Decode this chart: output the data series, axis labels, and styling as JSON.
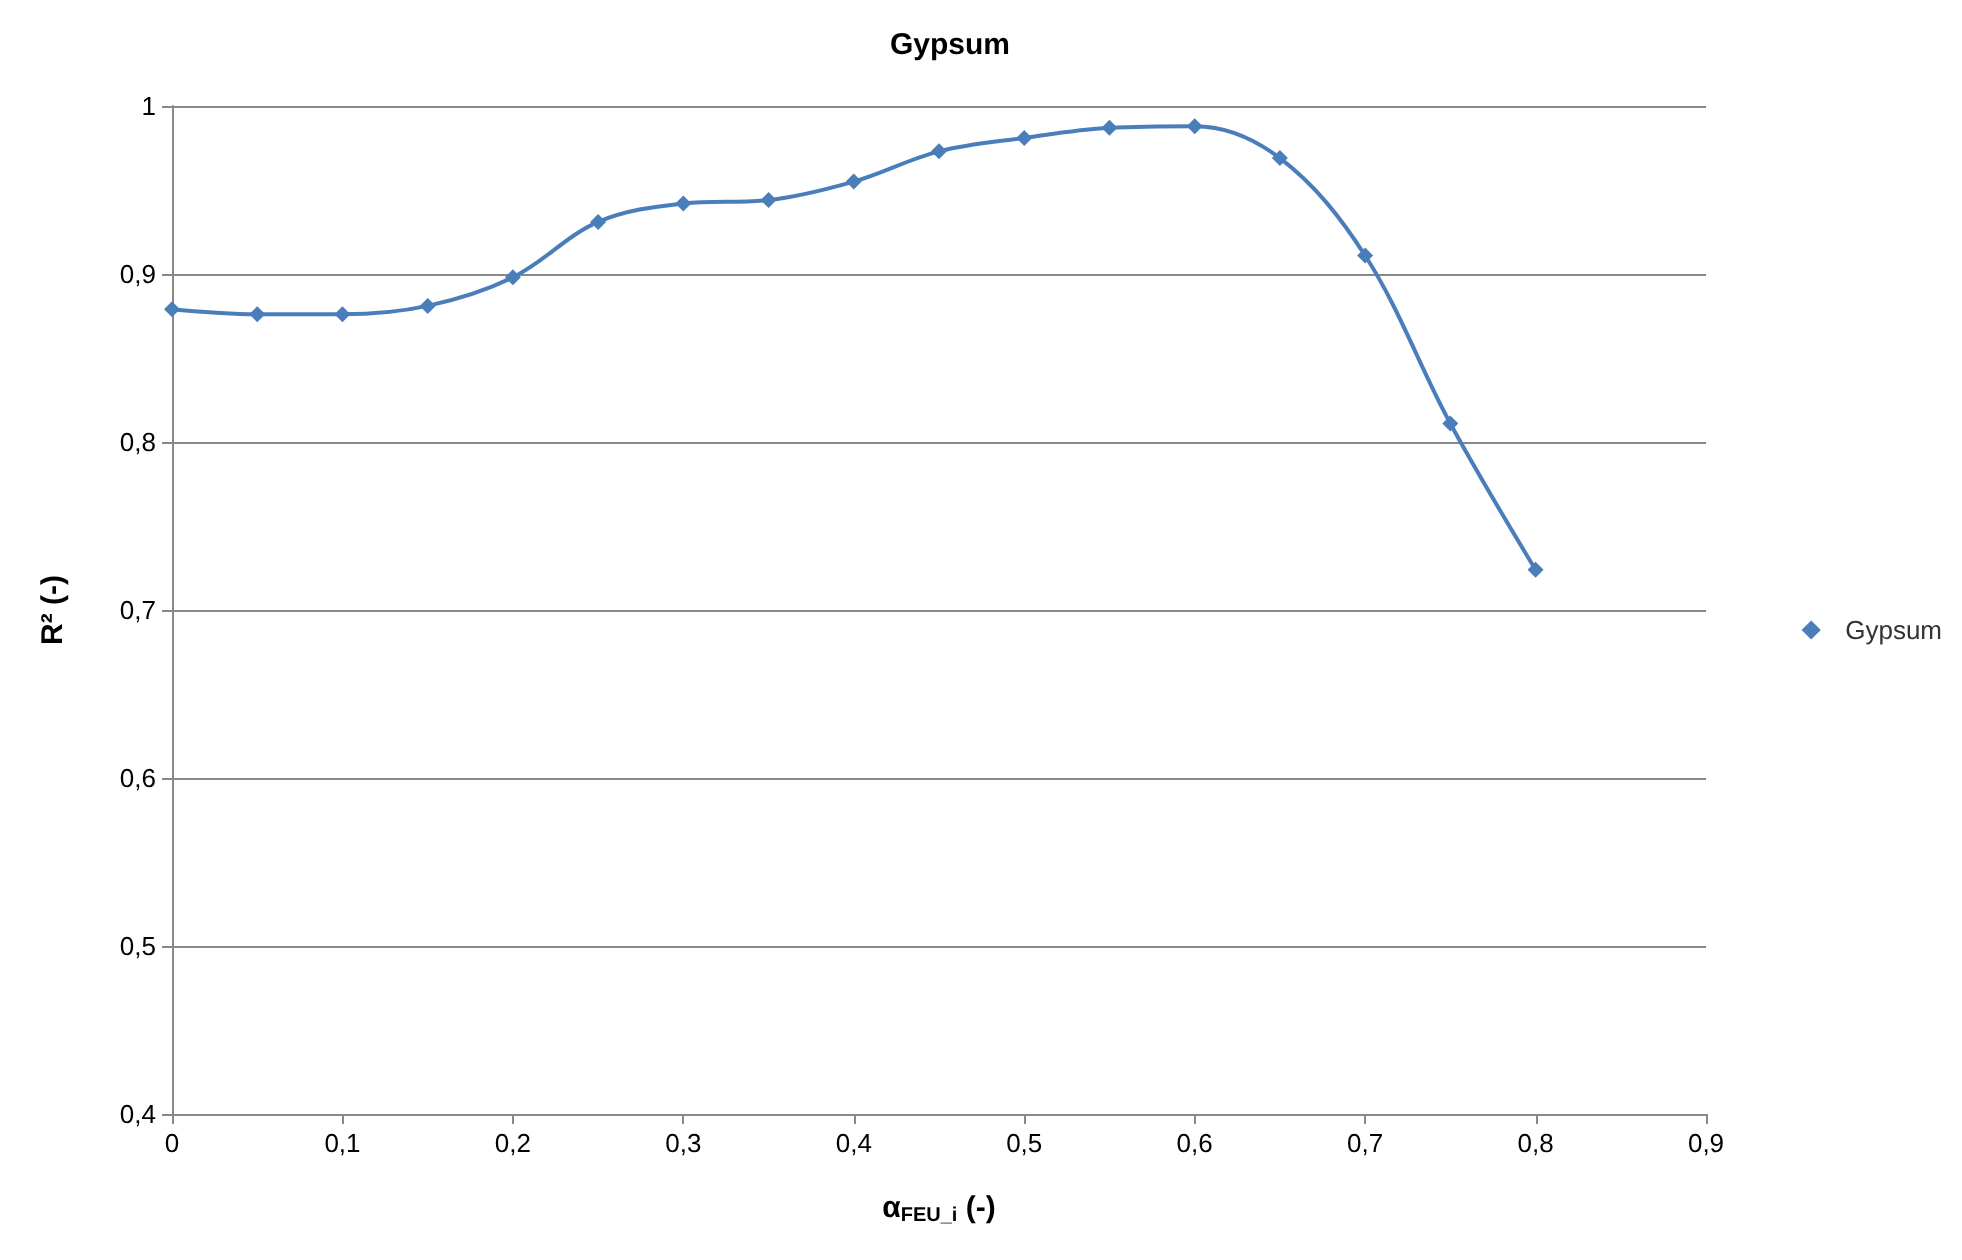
{
  "chart_data": {
    "type": "line",
    "title": "Gypsum",
    "xlabel": "α$_{FEU_i}$ (-)",
    "ylabel": "R² (-)",
    "x": [
      0,
      0.05,
      0.1,
      0.15,
      0.2,
      0.25,
      0.3,
      0.35,
      0.4,
      0.45,
      0.5,
      0.55,
      0.6,
      0.65,
      0.7,
      0.75,
      0.8
    ],
    "series": [
      {
        "name": "Gypsum",
        "color": "#4a7ebb",
        "values": [
          0.879,
          0.876,
          0.876,
          0.881,
          0.898,
          0.931,
          0.942,
          0.944,
          0.955,
          0.973,
          0.981,
          0.987,
          0.988,
          0.969,
          0.911,
          0.811,
          0.724
        ]
      }
    ],
    "xlim": [
      0,
      0.9
    ],
    "xticks": [
      {
        "value": 0,
        "label": "0"
      },
      {
        "value": 0.1,
        "label": "0,1"
      },
      {
        "value": 0.2,
        "label": "0,2"
      },
      {
        "value": 0.3,
        "label": "0,3"
      },
      {
        "value": 0.4,
        "label": "0,4"
      },
      {
        "value": 0.5,
        "label": "0,5"
      },
      {
        "value": 0.6,
        "label": "0,6"
      },
      {
        "value": 0.7,
        "label": "0,7"
      },
      {
        "value": 0.8,
        "label": "0,8"
      },
      {
        "value": 0.9,
        "label": "0,9"
      }
    ],
    "ylim": [
      0.4,
      1
    ],
    "yticks": [
      {
        "value": 0.4,
        "label": "0,4"
      },
      {
        "value": 0.5,
        "label": "0,5"
      },
      {
        "value": 0.6,
        "label": "0,6"
      },
      {
        "value": 0.7,
        "label": "0,7"
      },
      {
        "value": 0.8,
        "label": "0,8"
      },
      {
        "value": 0.9,
        "label": "0,9"
      },
      {
        "value": 1,
        "label": "1"
      }
    ],
    "grid": "y",
    "legend": "right",
    "marker": "diamond",
    "line_style": "solid"
  }
}
